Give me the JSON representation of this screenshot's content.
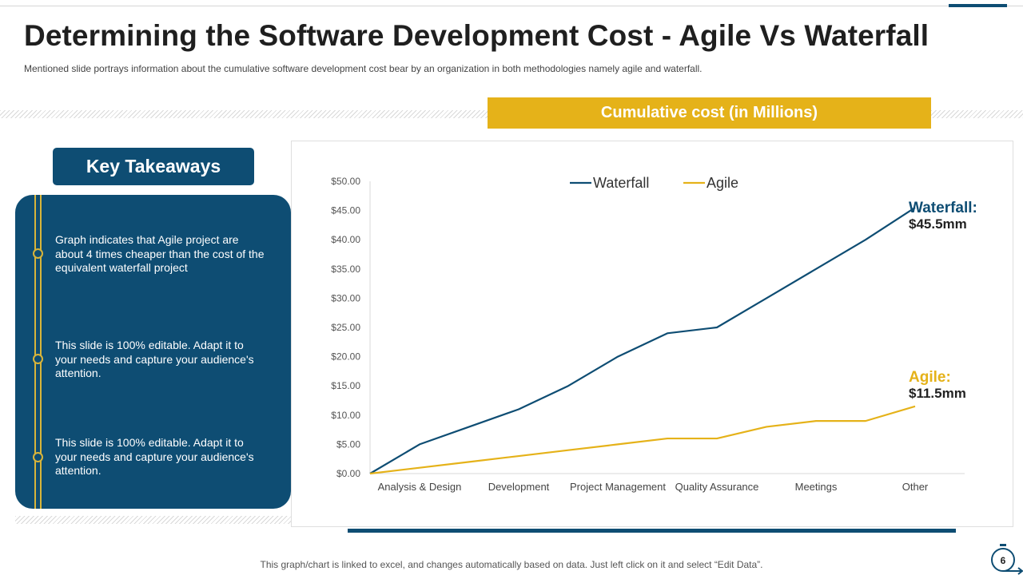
{
  "slide": {
    "title": "Determining the Software Development Cost - Agile Vs Waterfall",
    "subtitle": "Mentioned slide portrays information about the cumulative software development  cost bear by an organization in both methodologies namely agile and waterfall.",
    "footer": "This graph/chart is linked to excel, and changes automatically based on data. Just left click on it and select “Edit Data”.",
    "page_number": "6"
  },
  "colors": {
    "navy": "#0e4d73",
    "gold": "#e5b219",
    "timeline": "#d8b43a"
  },
  "takeaways": {
    "header": "Key Takeaways",
    "items": [
      "Graph indicates that  Agile project are about 4 times cheaper than the cost of the equivalent waterfall project",
      "This slide is 100% editable. Adapt it to your needs and capture your audience's attention.",
      "This slide is 100% editable. Adapt it to your needs and capture your audience's attention."
    ]
  },
  "chart_banner": "Cumulative cost (in Millions)",
  "callouts": {
    "waterfall_label": "Waterfall:",
    "waterfall_value": "$45.5mm",
    "agile_label": "Agile:",
    "agile_value": "$11.5mm"
  },
  "chart_data": {
    "type": "line",
    "categories": [
      "Analysis & Design",
      "Development",
      "Project Management",
      "Quality Assurance",
      "Meetings",
      "Other"
    ],
    "x": [
      0,
      0.5,
      1,
      1.5,
      2,
      2.5,
      3,
      3.5,
      4,
      4.5,
      5,
      5.5
    ],
    "series": [
      {
        "name": "Waterfall",
        "color": "#0e4d73",
        "values": [
          0,
          5,
          8,
          11,
          15,
          20,
          24,
          25,
          30,
          35,
          40,
          45.5
        ]
      },
      {
        "name": "Agile",
        "color": "#e5b219",
        "values": [
          0,
          1,
          2,
          3,
          4,
          5,
          6,
          6,
          8,
          9,
          9,
          11.5
        ]
      }
    ],
    "yticks": [
      "$0.00",
      "$5.00",
      "$10.00",
      "$15.00",
      "$20.00",
      "$25.00",
      "$30.00",
      "$35.00",
      "$40.00",
      "$45.00",
      "$50.00"
    ],
    "ylim": [
      0,
      50
    ],
    "legend": "top-center",
    "grid": false
  }
}
